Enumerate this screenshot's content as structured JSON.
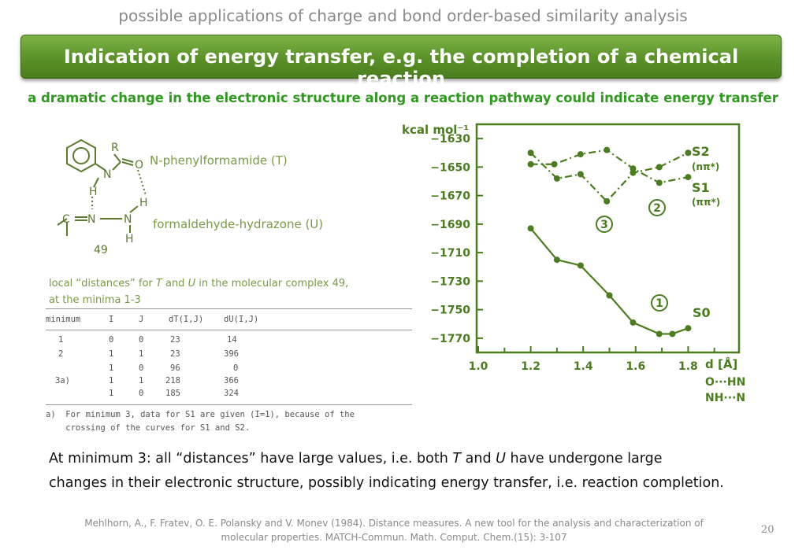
{
  "slide": {
    "supertitle": "possible applications of charge and bond order-based similarity analysis",
    "banner_title": "Indication of energy transfer, e.g. the completion of a chemical reaction",
    "subtitle": "a dramatic change in the electronic structure along a reaction pathway could indicate energy transfer",
    "page_number": "20"
  },
  "molecule": {
    "label_T": "N-phenylformamide (T)",
    "label_U": "formaldehyde-hydrazone (U)",
    "atoms": {
      "R": "R",
      "N1": "N",
      "H1": "H",
      "N2": "N",
      "N3": "N",
      "H2": "H",
      "H3": "H",
      "C": "C",
      "O": "O",
      "id": "49"
    }
  },
  "caption": {
    "line1_a": "local “distances” for ",
    "line1_T": "T",
    "line1_b": " and ",
    "line1_U": "U",
    "line1_c": "  in the molecular complex 49,",
    "line2": "at the minima 1-3"
  },
  "table": {
    "headers": [
      "minimum",
      "I",
      "J",
      "dT(I,J)",
      "dU(I,J)"
    ],
    "rows": [
      [
        "1",
        "0",
        "0",
        "23",
        "14"
      ],
      [
        "2",
        "1",
        "1",
        "23",
        "396"
      ],
      [
        "",
        "1",
        "0",
        "96",
        "0"
      ],
      [
        "3a)",
        "1",
        "1",
        "218",
        "366"
      ],
      [
        "",
        "1",
        "0",
        "185",
        "324"
      ]
    ],
    "footnote_line1": "a)  For minimum 3, data for S1 are given (I=1), because of the",
    "footnote_line2": "    crossing of the curves for S1 and S2."
  },
  "chart_data": {
    "type": "line",
    "ylabel": "kcal mol⁻¹",
    "xlabel": "d [Å]",
    "x_sublabels": [
      "O···HN",
      "NH···N"
    ],
    "xlim": [
      1.0,
      2.0
    ],
    "ylim": [
      -1780,
      -1620
    ],
    "x_ticks": [
      "1.0",
      "1.2",
      "1.4",
      "1.6",
      "1.8"
    ],
    "y_ticks": [
      "-1630",
      "-1650",
      "-1670",
      "-1690",
      "-1710",
      "-1730",
      "-1750",
      "-1770"
    ],
    "series": [
      {
        "name": "S0",
        "marker_label": "1",
        "style": "solid",
        "points": [
          [
            1.2,
            -1693
          ],
          [
            1.3,
            -1715
          ],
          [
            1.39,
            -1719
          ],
          [
            1.5,
            -1740
          ],
          [
            1.59,
            -1759
          ],
          [
            1.69,
            -1767
          ],
          [
            1.74,
            -1767
          ],
          [
            1.8,
            -1763
          ]
        ]
      },
      {
        "name": "S1",
        "sublabel": "(ππ*)",
        "marker_label": "2",
        "style": "dashdot",
        "points": [
          [
            1.2,
            -1648
          ],
          [
            1.29,
            -1648
          ],
          [
            1.39,
            -1641
          ],
          [
            1.49,
            -1638
          ],
          [
            1.59,
            -1651
          ],
          [
            1.69,
            -1661
          ],
          [
            1.8,
            -1657
          ]
        ]
      },
      {
        "name": "S2",
        "sublabel": "(nπ*)",
        "marker_label": "3",
        "style": "dashdot",
        "points": [
          [
            1.2,
            -1640
          ],
          [
            1.3,
            -1658
          ],
          [
            1.39,
            -1655
          ],
          [
            1.49,
            -1674
          ],
          [
            1.59,
            -1654
          ],
          [
            1.69,
            -1650
          ],
          [
            1.8,
            -1640
          ]
        ]
      }
    ]
  },
  "conclusion": {
    "line1_a": "At minimum 3: all “distances” have large values, i.e. both ",
    "T": "T",
    "line1_b": "  and ",
    "U": "U",
    "line1_c": "  have undergone large",
    "line2": "changes in their electronic structure, possibly indicating energy transfer, i.e. reaction completion."
  },
  "reference": {
    "line1": "Mehlhorn, A., F. Fratev, O. E. Polansky and V. Monev (1984). Distance measures. A new tool for the analysis and characterization of",
    "line2": "molecular properties. MATCH-Commun. Math. Comput. Chem.(15): 3-107"
  },
  "colors": {
    "banner_green": "#5a9128",
    "subtitle_green": "#2e9a1e",
    "label_green": "#7a9a45",
    "scan_green": "#5b7a2d"
  }
}
